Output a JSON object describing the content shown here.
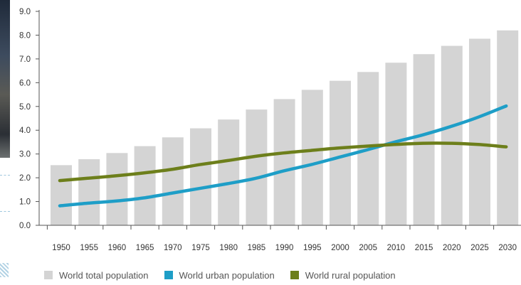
{
  "chart_data": {
    "type": "bar",
    "categories": [
      "1950",
      "1955",
      "1960",
      "1965",
      "1970",
      "1975",
      "1980",
      "1985",
      "1990",
      "1995",
      "2000",
      "2005",
      "2010",
      "2015",
      "2020",
      "2025",
      "2030"
    ],
    "series": [
      {
        "name": "World total population",
        "kind": "bar",
        "color": "#d4d4d4",
        "values": [
          2.53,
          2.78,
          3.04,
          3.33,
          3.7,
          4.08,
          4.45,
          4.87,
          5.31,
          5.7,
          6.08,
          6.45,
          6.84,
          7.2,
          7.55,
          7.85,
          8.2
        ]
      },
      {
        "name": "World urban population",
        "kind": "line",
        "color": "#1e9ec7",
        "values": [
          0.82,
          0.93,
          1.02,
          1.15,
          1.35,
          1.55,
          1.75,
          1.97,
          2.28,
          2.55,
          2.86,
          3.17,
          3.5,
          3.8,
          4.15,
          4.55,
          5.02
        ]
      },
      {
        "name": "World rural population",
        "kind": "line",
        "color": "#6d7f1b",
        "values": [
          1.88,
          1.98,
          2.08,
          2.2,
          2.35,
          2.55,
          2.72,
          2.9,
          3.04,
          3.15,
          3.25,
          3.33,
          3.4,
          3.45,
          3.45,
          3.4,
          3.3
        ]
      }
    ],
    "y_ticks": [
      "0.0",
      "1.0",
      "2.0",
      "3.0",
      "4.0",
      "5.0",
      "6.0",
      "7.0",
      "8.0",
      "9.0"
    ],
    "ylim": [
      0,
      9
    ],
    "grid": false,
    "legend_position": "bottom"
  },
  "legend": [
    {
      "label": "World total population",
      "color": "#d4d4d4"
    },
    {
      "label": "World urban population",
      "color": "#1e9ec7"
    },
    {
      "label": "World rural population",
      "color": "#6d7f1b"
    }
  ]
}
